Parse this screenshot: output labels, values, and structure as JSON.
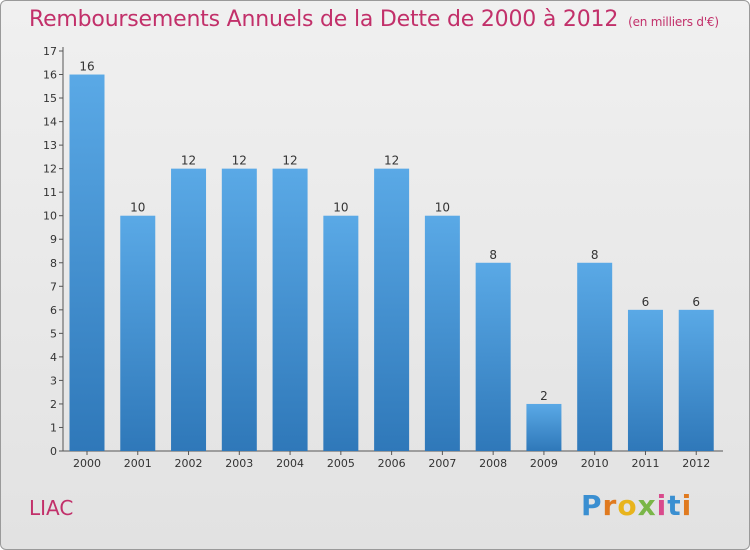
{
  "title": "Remboursements Annuels de la Dette de 2000 à 2012",
  "unit": "(en milliers d'€)",
  "commune": "LIAC",
  "logo": "Proxiti",
  "colors": {
    "bar_top": "#5aa9e6",
    "bar_bottom": "#2f78b9",
    "title": "#c2306a"
  },
  "chart_data": {
    "type": "bar",
    "title": "Remboursements Annuels de la Dette de 2000 à 2012",
    "subtitle": "(en milliers d'€)",
    "categories": [
      "2000",
      "2001",
      "2002",
      "2003",
      "2004",
      "2005",
      "2006",
      "2007",
      "2008",
      "2009",
      "2010",
      "2011",
      "2012"
    ],
    "values": [
      16,
      10,
      12,
      12,
      12,
      10,
      12,
      10,
      8,
      2,
      8,
      6,
      6
    ],
    "ylim": [
      0,
      17
    ],
    "yticks": [
      0,
      1,
      2,
      3,
      4,
      5,
      6,
      7,
      8,
      9,
      10,
      11,
      12,
      13,
      14,
      15,
      16,
      17
    ],
    "grid": false,
    "legend": "none"
  }
}
